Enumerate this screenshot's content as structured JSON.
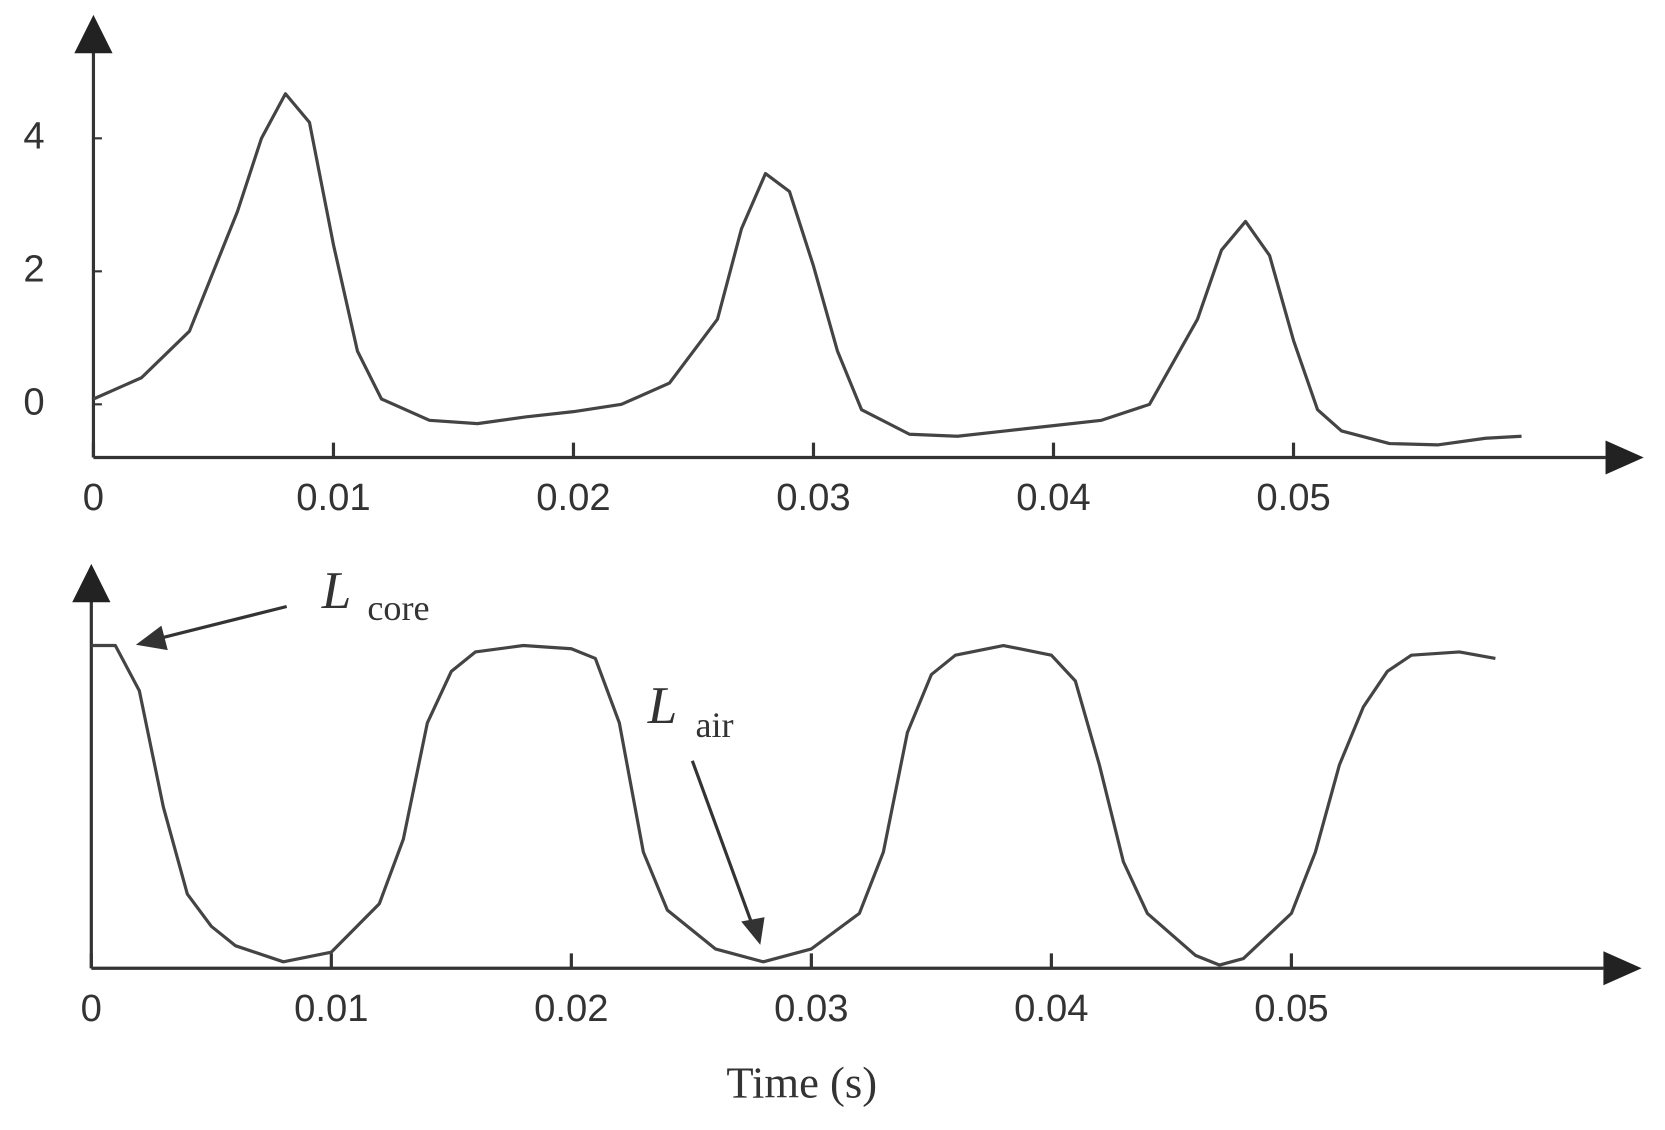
{
  "chart_data": [
    {
      "type": "line",
      "x": [
        0,
        0.002,
        0.004,
        0.006,
        0.007,
        0.008,
        0.009,
        0.01,
        0.011,
        0.012,
        0.014,
        0.016,
        0.018,
        0.02,
        0.022,
        0.024,
        0.026,
        0.027,
        0.028,
        0.029,
        0.03,
        0.031,
        0.032,
        0.034,
        0.036,
        0.038,
        0.04,
        0.042,
        0.044,
        0.046,
        0.047,
        0.048,
        0.049,
        0.05,
        0.051,
        0.052,
        0.054,
        0.056,
        0.058,
        0.0595
      ],
      "series": [
        {
          "color": "#444444",
          "values": [
            0.08,
            0.4,
            1.1,
            2.9,
            4.0,
            4.67,
            4.24,
            2.4,
            0.8,
            0.08,
            -0.24,
            -0.29,
            -0.19,
            -0.11,
            0,
            0.32,
            1.28,
            2.64,
            3.47,
            3.2,
            2.08,
            0.8,
            -0.08,
            -0.45,
            -0.48,
            -0.4,
            -0.32,
            -0.24,
            0,
            1.28,
            2.32,
            2.75,
            2.24,
            0.96,
            -0.08,
            -0.4,
            -0.59,
            -0.61,
            -0.51,
            -0.48
          ]
        }
      ],
      "xlim": [
        0,
        0.063
      ],
      "xticks": [
        0,
        0.01,
        0.02,
        0.03,
        0.04,
        0.05
      ],
      "ylim": [
        -0.8,
        5.6
      ],
      "yticks": [
        0,
        2,
        4
      ]
    },
    {
      "type": "line",
      "xlabel": "Time (s)",
      "x": [
        0,
        0.001,
        0.002,
        0.003,
        0.004,
        0.005,
        0.006,
        0.008,
        0.01,
        0.012,
        0.013,
        0.014,
        0.015,
        0.016,
        0.018,
        0.02,
        0.021,
        0.022,
        0.023,
        0.024,
        0.026,
        0.028,
        0.03,
        0.032,
        0.033,
        0.034,
        0.035,
        0.036,
        0.038,
        0.04,
        0.041,
        0.042,
        0.043,
        0.044,
        0.046,
        0.047,
        0.048,
        0.05,
        0.051,
        0.052,
        0.053,
        0.054,
        0.055,
        0.057,
        0.0585
      ],
      "series": [
        {
          "color": "#444444",
          "values": [
            1.0,
            1.0,
            0.86,
            0.5,
            0.23,
            0.13,
            0.07,
            0.02,
            0.05,
            0.2,
            0.4,
            0.76,
            0.92,
            0.98,
            1.0,
            0.99,
            0.96,
            0.76,
            0.36,
            0.18,
            0.06,
            0.02,
            0.06,
            0.17,
            0.36,
            0.73,
            0.91,
            0.97,
            1.0,
            0.97,
            0.89,
            0.63,
            0.33,
            0.17,
            0.04,
            0.01,
            0.03,
            0.17,
            0.36,
            0.63,
            0.81,
            0.92,
            0.97,
            0.98,
            0.96
          ]
        }
      ],
      "xlim": [
        0,
        0.063
      ],
      "xticks": [
        0,
        0.01,
        0.02,
        0.03,
        0.04,
        0.05
      ],
      "ylim": [
        0,
        1.2
      ],
      "annotations": [
        {
          "text": "L",
          "subscript": "core"
        },
        {
          "text": "L",
          "subscript": "air"
        }
      ]
    }
  ]
}
